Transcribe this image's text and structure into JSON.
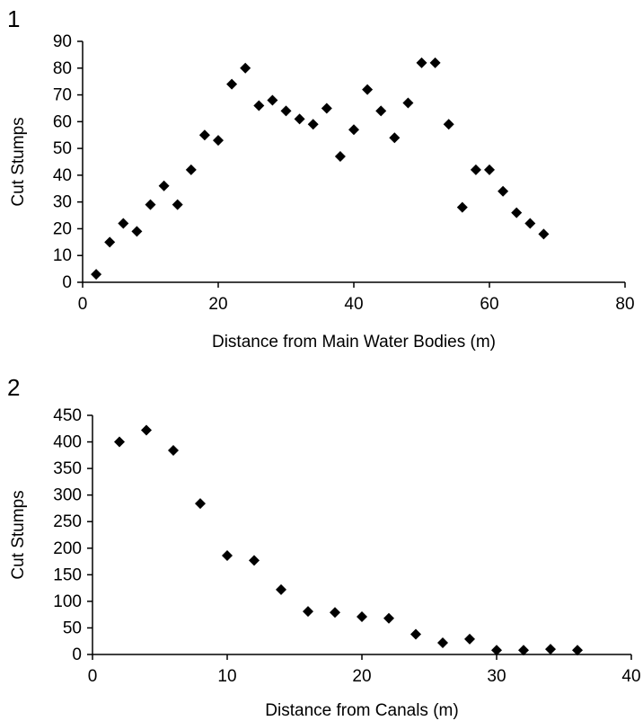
{
  "chart_data": [
    {
      "panel_label": "1",
      "type": "scatter",
      "title": "",
      "xlabel": "Distance from Main Water Bodies (m)",
      "ylabel": "Cut Stumps",
      "xlim": [
        0,
        80
      ],
      "ylim": [
        0,
        90
      ],
      "xticks": [
        0,
        20,
        40,
        60,
        80
      ],
      "yticks": [
        0,
        10,
        20,
        30,
        40,
        50,
        60,
        70,
        80,
        90
      ],
      "grid": false,
      "marker": "diamond",
      "marker_color": "#000000",
      "points": [
        {
          "x": 2,
          "y": 3
        },
        {
          "x": 4,
          "y": 15
        },
        {
          "x": 6,
          "y": 22
        },
        {
          "x": 8,
          "y": 19
        },
        {
          "x": 10,
          "y": 29
        },
        {
          "x": 12,
          "y": 36
        },
        {
          "x": 14,
          "y": 29
        },
        {
          "x": 16,
          "y": 42
        },
        {
          "x": 18,
          "y": 55
        },
        {
          "x": 20,
          "y": 53
        },
        {
          "x": 22,
          "y": 74
        },
        {
          "x": 24,
          "y": 80
        },
        {
          "x": 26,
          "y": 66
        },
        {
          "x": 28,
          "y": 68
        },
        {
          "x": 30,
          "y": 64
        },
        {
          "x": 32,
          "y": 61
        },
        {
          "x": 34,
          "y": 59
        },
        {
          "x": 36,
          "y": 65
        },
        {
          "x": 38,
          "y": 47
        },
        {
          "x": 40,
          "y": 57
        },
        {
          "x": 42,
          "y": 72
        },
        {
          "x": 44,
          "y": 64
        },
        {
          "x": 46,
          "y": 54
        },
        {
          "x": 48,
          "y": 67
        },
        {
          "x": 50,
          "y": 82
        },
        {
          "x": 52,
          "y": 82
        },
        {
          "x": 54,
          "y": 59
        },
        {
          "x": 56,
          "y": 28
        },
        {
          "x": 58,
          "y": 42
        },
        {
          "x": 60,
          "y": 42
        },
        {
          "x": 62,
          "y": 34
        },
        {
          "x": 64,
          "y": 26
        },
        {
          "x": 66,
          "y": 22
        },
        {
          "x": 68,
          "y": 18
        }
      ]
    },
    {
      "panel_label": "2",
      "type": "scatter",
      "title": "",
      "xlabel": "Distance from Canals  (m)",
      "ylabel": "Cut Stumps",
      "xlim": [
        0,
        40
      ],
      "ylim": [
        0,
        450
      ],
      "xticks": [
        0,
        10,
        20,
        30,
        40
      ],
      "yticks": [
        0,
        50,
        100,
        150,
        200,
        250,
        300,
        350,
        400,
        450
      ],
      "grid": false,
      "marker": "diamond",
      "marker_color": "#000000",
      "points": [
        {
          "x": 2,
          "y": 400
        },
        {
          "x": 4,
          "y": 422
        },
        {
          "x": 6,
          "y": 384
        },
        {
          "x": 8,
          "y": 284
        },
        {
          "x": 10,
          "y": 186
        },
        {
          "x": 12,
          "y": 177
        },
        {
          "x": 14,
          "y": 122
        },
        {
          "x": 16,
          "y": 81
        },
        {
          "x": 18,
          "y": 79
        },
        {
          "x": 20,
          "y": 71
        },
        {
          "x": 22,
          "y": 68
        },
        {
          "x": 24,
          "y": 38
        },
        {
          "x": 26,
          "y": 22
        },
        {
          "x": 28,
          "y": 29
        },
        {
          "x": 30,
          "y": 8
        },
        {
          "x": 32,
          "y": 8
        },
        {
          "x": 34,
          "y": 10
        },
        {
          "x": 36,
          "y": 8
        }
      ]
    }
  ]
}
